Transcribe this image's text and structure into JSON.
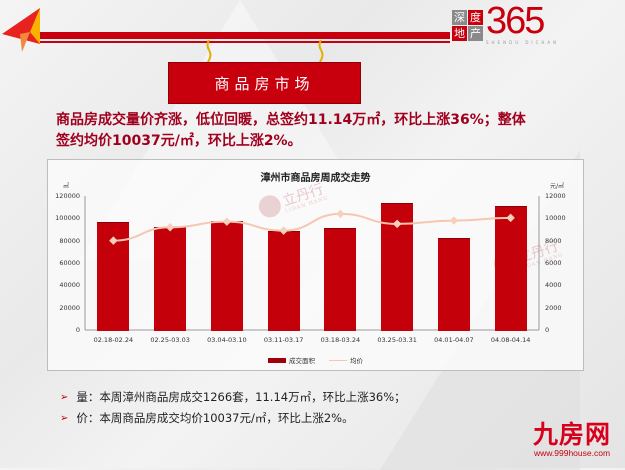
{
  "header": {
    "board_title": "商品房市场",
    "logo_top_right": {
      "box_chars": [
        "深",
        "度",
        "地",
        "产"
      ],
      "number": "365",
      "subtitle": "SHENDU DICHAN"
    }
  },
  "headline": {
    "line1": "商品房成交量价齐涨，低位回暖，总签约11.14万㎡，环比上涨36%；整体",
    "line2": "签约均价10037元/㎡，环比上涨2%。"
  },
  "chart": {
    "title": "漳州市商品房周成交走势",
    "left_unit": "㎡",
    "right_unit": "元/㎡",
    "left_ticks": [
      "120000",
      "100000",
      "80000",
      "60000",
      "40000",
      "20000",
      "0"
    ],
    "right_ticks": [
      "12000",
      "10000",
      "8000",
      "6000",
      "4000",
      "2000",
      "0"
    ],
    "legend": {
      "bar": "成交面积",
      "line": "均价"
    },
    "watermark": {
      "cn": "立丹行",
      "en": "LIDAN HANG"
    }
  },
  "chart_data": {
    "type": "bar",
    "title": "漳州市商品房周成交走势",
    "categories": [
      "02.18-02.24",
      "02.25-03.03",
      "03.04-03.10",
      "03.11-03.17",
      "03.18-03.24",
      "03.25-03.31",
      "04.01-04.07",
      "04.08-04.14"
    ],
    "series": [
      {
        "name": "成交面积",
        "type": "bar",
        "axis": "left",
        "unit": "㎡",
        "color": "#c4000a",
        "values": [
          97000,
          92500,
          97500,
          88500,
          91500,
          114000,
          82000,
          111400
        ]
      },
      {
        "name": "均价",
        "type": "line",
        "axis": "right",
        "unit": "元/㎡",
        "color": "#f5c7b0",
        "values": [
          8000,
          9200,
          9700,
          8900,
          10400,
          9500,
          9800,
          10037
        ]
      }
    ],
    "ylabel_left": "㎡",
    "ylim_left": [
      0,
      120000
    ],
    "ylabel_right": "元/㎡",
    "ylim_right": [
      0,
      12000
    ],
    "grid": false,
    "legend_position": "bottom"
  },
  "bullets": [
    {
      "text": "量：本周漳州商品房成交1266套，11.14万㎡，环比上涨36%；"
    },
    {
      "text": "价：本周商品房成交均价10037元/㎡，环比上涨2%。"
    }
  ],
  "footer_logo": {
    "cn": "九房网",
    "url": "www.999house.com"
  },
  "colors": {
    "brand_red": "#c8000e",
    "headline": "#a0001e",
    "line": "#f5c7b0"
  }
}
